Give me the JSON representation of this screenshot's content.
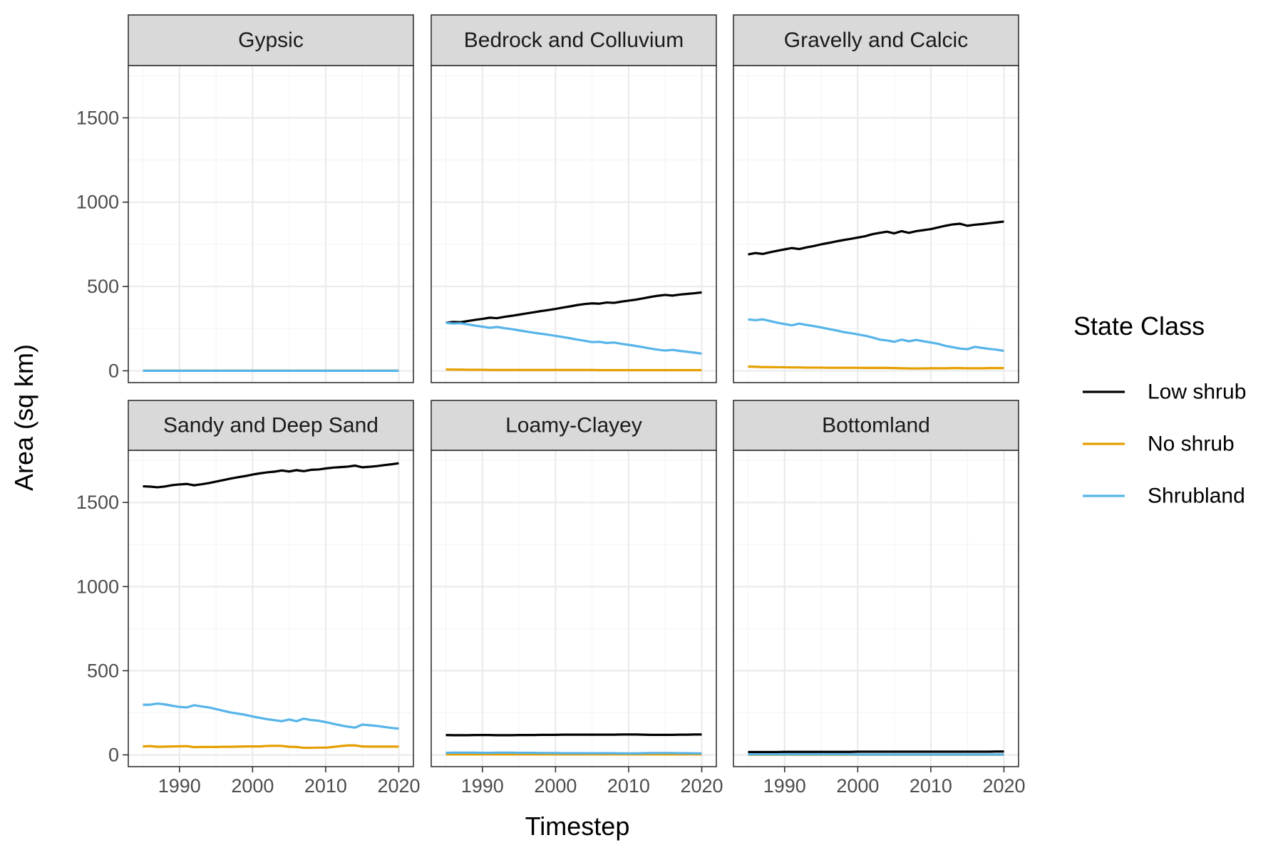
{
  "chart_data": {
    "type": "line",
    "xlabel": "Timestep",
    "ylabel": "Area (sq km)",
    "xlim": [
      1983,
      2022
    ],
    "ylim": [
      -70,
      1810
    ],
    "x_ticks": [
      1990,
      2000,
      2010,
      2020
    ],
    "y_ticks": [
      0,
      500,
      1000,
      1500
    ],
    "grid": true,
    "legend": {
      "title": "State Class",
      "position": "right",
      "entries": [
        {
          "name": "Low shrub",
          "color": "#000000"
        },
        {
          "name": "No shrub",
          "color": "#E69F00"
        },
        {
          "name": "Shrubland",
          "color": "#56B4E9"
        }
      ]
    },
    "x": [
      1985,
      1986,
      1987,
      1988,
      1989,
      1990,
      1991,
      1992,
      1993,
      1994,
      1995,
      1996,
      1997,
      1998,
      1999,
      2000,
      2001,
      2002,
      2003,
      2004,
      2005,
      2006,
      2007,
      2008,
      2009,
      2010,
      2011,
      2012,
      2013,
      2014,
      2015,
      2016,
      2017,
      2018,
      2019,
      2020
    ],
    "panels": [
      {
        "title": "Gypsic",
        "series": [
          {
            "name": "Low shrub",
            "values": [
              0,
              0,
              0,
              0,
              0,
              0,
              0,
              0,
              0,
              0,
              0,
              0,
              0,
              0,
              0,
              0,
              0,
              0,
              0,
              0,
              0,
              0,
              0,
              0,
              0,
              0,
              0,
              0,
              0,
              0,
              0,
              0,
              0,
              0,
              0,
              0
            ]
          },
          {
            "name": "No shrub",
            "values": [
              0,
              0,
              0,
              0,
              0,
              0,
              0,
              0,
              0,
              0,
              0,
              0,
              0,
              0,
              0,
              0,
              0,
              0,
              0,
              0,
              0,
              0,
              0,
              0,
              0,
              0,
              0,
              0,
              0,
              0,
              0,
              0,
              0,
              0,
              0,
              0
            ]
          },
          {
            "name": "Shrubland",
            "values": [
              0,
              0,
              0,
              0,
              0,
              0,
              0,
              0,
              0,
              0,
              0,
              0,
              0,
              0,
              0,
              0,
              0,
              0,
              0,
              0,
              0,
              0,
              0,
              0,
              0,
              0,
              0,
              0,
              0,
              0,
              0,
              0,
              0,
              0,
              0,
              0
            ]
          }
        ]
      },
      {
        "title": "Bedrock and Colluvium",
        "series": [
          {
            "name": "Low shrub",
            "values": [
              285,
              290,
              288,
              295,
              302,
              308,
              315,
              312,
              320,
              326,
              333,
              340,
              347,
              354,
              360,
              367,
              375,
              382,
              390,
              396,
              400,
              398,
              405,
              403,
              410,
              416,
              422,
              430,
              438,
              445,
              450,
              446,
              452,
              456,
              460,
              465
            ]
          },
          {
            "name": "No shrub",
            "values": [
              8,
              7,
              7,
              6,
              6,
              6,
              5,
              5,
              5,
              5,
              5,
              5,
              5,
              5,
              5,
              5,
              5,
              5,
              5,
              5,
              5,
              4,
              4,
              4,
              4,
              4,
              4,
              4,
              4,
              4,
              4,
              4,
              4,
              4,
              4,
              4
            ]
          },
          {
            "name": "Shrubland",
            "values": [
              285,
              280,
              282,
              275,
              268,
              262,
              255,
              260,
              253,
              247,
              240,
              233,
              226,
              220,
              214,
              207,
              200,
              193,
              185,
              178,
              170,
              172,
              165,
              168,
              160,
              154,
              147,
              140,
              132,
              125,
              120,
              124,
              118,
              113,
              108,
              102
            ]
          }
        ]
      },
      {
        "title": "Gravelly and Calcic",
        "series": [
          {
            "name": "Low shrub",
            "values": [
              690,
              698,
              693,
              703,
              712,
              720,
              728,
              722,
              732,
              740,
              750,
              758,
              767,
              775,
              782,
              790,
              798,
              810,
              818,
              825,
              815,
              828,
              818,
              828,
              834,
              840,
              850,
              860,
              868,
              872,
              860,
              866,
              870,
              875,
              880,
              885
            ]
          },
          {
            "name": "No shrub",
            "values": [
              25,
              24,
              22,
              22,
              21,
              21,
              20,
              20,
              19,
              19,
              19,
              18,
              18,
              18,
              18,
              18,
              17,
              17,
              17,
              17,
              16,
              15,
              14,
              14,
              14,
              15,
              15,
              15,
              16,
              16,
              15,
              15,
              15,
              16,
              16,
              16
            ]
          },
          {
            "name": "Shrubland",
            "values": [
              305,
              300,
              305,
              295,
              285,
              277,
              270,
              280,
              272,
              265,
              257,
              248,
              240,
              230,
              224,
              216,
              208,
              198,
              185,
              180,
              172,
              185,
              175,
              183,
              175,
              168,
              160,
              148,
              140,
              132,
              128,
              142,
              136,
              130,
              125,
              118
            ]
          }
        ]
      },
      {
        "title": "Sandy and Deep Sand",
        "series": [
          {
            "name": "Low shrub",
            "values": [
              1596,
              1594,
              1590,
              1595,
              1603,
              1607,
              1610,
              1602,
              1608,
              1615,
              1624,
              1633,
              1642,
              1650,
              1657,
              1666,
              1673,
              1679,
              1683,
              1690,
              1684,
              1692,
              1686,
              1694,
              1696,
              1702,
              1707,
              1710,
              1713,
              1719,
              1709,
              1712,
              1716,
              1722,
              1727,
              1733
            ]
          },
          {
            "name": "No shrub",
            "values": [
              50,
              52,
              48,
              49,
              50,
              51,
              52,
              46,
              47,
              47,
              47,
              48,
              48,
              49,
              50,
              50,
              50,
              53,
              54,
              53,
              48,
              47,
              42,
              42,
              43,
              43,
              47,
              52,
              56,
              56,
              50,
              49,
              49,
              49,
              49,
              49
            ]
          },
          {
            "name": "Shrubland",
            "values": [
              298,
              298,
              305,
              300,
              292,
              285,
              282,
              295,
              288,
              282,
              272,
              262,
              252,
              245,
              238,
              228,
              220,
              212,
              206,
              200,
              210,
              200,
              215,
              207,
              203,
              195,
              185,
              176,
              168,
              162,
              180,
              176,
              172,
              166,
              160,
              156
            ]
          }
        ]
      },
      {
        "title": "Loamy-Clayey",
        "series": [
          {
            "name": "Low shrub",
            "values": [
              118,
              117,
              117,
              117,
              118,
              118,
              118,
              117,
              117,
              117,
              118,
              118,
              118,
              119,
              119,
              119,
              120,
              120,
              120,
              120,
              120,
              120,
              120,
              120,
              121,
              121,
              121,
              120,
              119,
              119,
              119,
              119,
              120,
              120,
              121,
              121
            ]
          },
          {
            "name": "No shrub",
            "values": [
              3,
              3,
              3,
              3,
              3,
              3,
              3,
              3,
              3,
              3,
              3,
              3,
              3,
              3,
              3,
              3,
              3,
              3,
              3,
              3,
              3,
              3,
              3,
              3,
              3,
              3,
              3,
              3,
              3,
              3,
              3,
              3,
              3,
              3,
              3,
              3
            ]
          },
          {
            "name": "Shrubland",
            "values": [
              12,
              13,
              13,
              13,
              13,
              12,
              12,
              13,
              13,
              13,
              12,
              12,
              12,
              11,
              11,
              11,
              10,
              10,
              10,
              10,
              10,
              10,
              10,
              10,
              9,
              9,
              9,
              10,
              11,
              11,
              11,
              11,
              10,
              10,
              9,
              9
            ]
          }
        ]
      },
      {
        "title": "Bottomland",
        "series": [
          {
            "name": "Low shrub",
            "values": [
              17,
              17,
              17,
              17,
              17,
              18,
              18,
              18,
              18,
              18,
              18,
              18,
              18,
              18,
              18,
              19,
              19,
              19,
              19,
              19,
              19,
              19,
              19,
              19,
              19,
              19,
              19,
              19,
              19,
              19,
              19,
              19,
              19,
              19,
              20,
              20
            ]
          },
          {
            "name": "No shrub",
            "values": [
              1,
              1,
              1,
              1,
              1,
              1,
              1,
              1,
              1,
              1,
              1,
              1,
              1,
              1,
              1,
              1,
              1,
              1,
              1,
              1,
              1,
              1,
              1,
              1,
              1,
              1,
              1,
              1,
              1,
              1,
              1,
              1,
              1,
              1,
              1,
              1
            ]
          },
          {
            "name": "Shrubland",
            "values": [
              3,
              3,
              3,
              3,
              3,
              3,
              3,
              3,
              3,
              3,
              3,
              3,
              3,
              3,
              3,
              2,
              2,
              2,
              2,
              2,
              2,
              2,
              2,
              2,
              2,
              2,
              2,
              2,
              2,
              2,
              2,
              2,
              2,
              2,
              2,
              2
            ]
          }
        ]
      }
    ]
  }
}
